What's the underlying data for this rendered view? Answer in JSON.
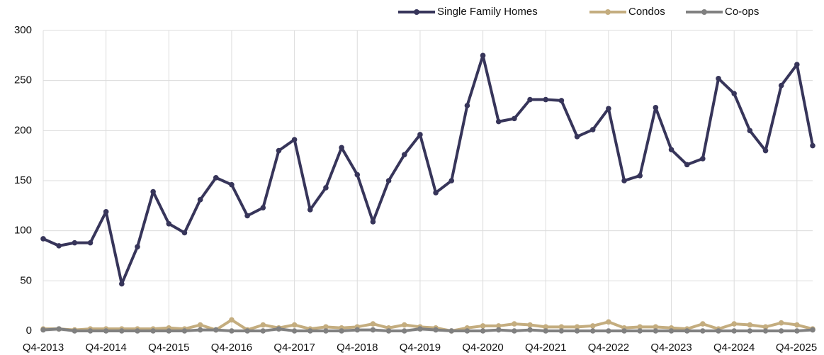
{
  "chart_data": {
    "type": "line",
    "categories": [
      "Q4-2013",
      null,
      null,
      null,
      "Q4-2014",
      null,
      null,
      null,
      "Q4-2015",
      null,
      null,
      null,
      "Q4-2016",
      null,
      null,
      null,
      "Q4-2017",
      null,
      null,
      null,
      "Q4-2018",
      null,
      null,
      null,
      "Q4-2019",
      null,
      null,
      null,
      "Q4-2020",
      null,
      null,
      null,
      "Q4-2021",
      null,
      null,
      null,
      "Q4-2022",
      null,
      null,
      null,
      "Q4-2023",
      null,
      null,
      null,
      "Q4-2024",
      null,
      null,
      null,
      "Q4-2025",
      null
    ],
    "series": [
      {
        "name": "Single Family Homes",
        "color": "#37355a",
        "values": [
          92,
          85,
          88,
          88,
          119,
          47,
          84,
          139,
          107,
          98,
          131,
          153,
          146,
          115,
          123,
          180,
          191,
          121,
          143,
          183,
          156,
          109,
          150,
          176,
          196,
          138,
          150,
          225,
          275,
          209,
          212,
          231,
          231,
          230,
          194,
          201,
          222,
          150,
          155,
          223,
          181,
          166,
          172,
          252,
          237,
          200,
          180,
          245,
          266,
          185
        ]
      },
      {
        "name": "Condos",
        "color": "#c4ad7f",
        "values": [
          2,
          2,
          1,
          2,
          2,
          2,
          2,
          2,
          3,
          2,
          6,
          1,
          11,
          1,
          6,
          3,
          6,
          2,
          4,
          3,
          4,
          7,
          3,
          6,
          4,
          3,
          0,
          3,
          5,
          5,
          7,
          6,
          4,
          4,
          4,
          5,
          9,
          3,
          4,
          4,
          3,
          2,
          7,
          2,
          7,
          6,
          4,
          8,
          6,
          2
        ]
      },
      {
        "name": "Co-ops",
        "color": "#808080",
        "values": [
          1,
          2,
          0,
          0,
          0,
          0,
          0,
          0,
          0,
          0,
          1,
          1,
          0,
          0,
          0,
          2,
          0,
          0,
          0,
          0,
          1,
          1,
          0,
          0,
          2,
          1,
          0,
          0,
          0,
          1,
          0,
          1,
          0,
          0,
          0,
          0,
          0,
          0,
          0,
          0,
          0,
          0,
          0,
          0,
          0,
          0,
          0,
          0,
          0,
          1
        ]
      }
    ],
    "ylim": [
      0,
      300
    ],
    "yticks": [
      0,
      50,
      100,
      150,
      200,
      250,
      300
    ],
    "grid": true,
    "legend": "top-right"
  }
}
